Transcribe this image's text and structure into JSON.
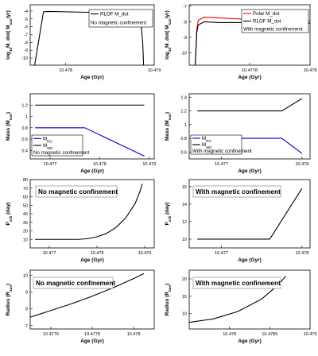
{
  "chart_data": [
    {
      "type": "line",
      "xlabel": "Age (Gyr)",
      "ylabel": "log10M_dot( Msun/yr)",
      "xlim": [
        10.4776,
        10.479
      ],
      "ylim": [
        -10.9,
        -3.2
      ],
      "xticks": [
        10.478,
        10.479
      ],
      "yticks": [
        -4,
        -5,
        -6,
        -7,
        -8,
        -9,
        -10
      ],
      "legend": {
        "position": "top-right",
        "entries": [
          "RLOF M_dot",
          "No magnetic confinement"
        ]
      },
      "series": [
        {
          "name": "RLOF M_dot",
          "color": "#000000",
          "x": [
            10.47765,
            10.47775,
            10.4778,
            10.478,
            10.4782,
            10.4784,
            10.4786,
            10.47875,
            10.4788,
            10.47885,
            10.47887,
            10.47888
          ],
          "y": [
            -10.9,
            -4.1,
            -4.05,
            -4.1,
            -4.15,
            -4.18,
            -4.22,
            -4.3,
            -4.6,
            -5.5,
            -8.0,
            -10.9
          ]
        }
      ]
    },
    {
      "type": "line",
      "xlabel": "Age (Gyr)",
      "ylabel": "log10M_dot( Msun/yr)",
      "xlim": [
        10.4776,
        10.478
      ],
      "ylim": [
        -10.8,
        -6.9
      ],
      "xticks": [
        10.4778,
        10.478
      ],
      "yticks": [
        -7,
        -8,
        -9,
        -10
      ],
      "legend": {
        "position": "top-right",
        "entries": [
          "Polar M_dot",
          "RLOF M_dot",
          "With magnetic confinement"
        ]
      },
      "series": [
        {
          "name": "Polar M_dot",
          "color": "#ff0000",
          "x": [
            10.47762,
            10.477625,
            10.47763,
            10.47765,
            10.4777,
            10.4778,
            10.4779,
            10.478
          ],
          "y": [
            -10.8,
            -8.5,
            -7.9,
            -7.7,
            -7.75,
            -7.85,
            -7.95,
            -7.95
          ]
        },
        {
          "name": "RLOF M_dot",
          "color": "#000000",
          "x": [
            10.47762,
            10.477625,
            10.47763,
            10.47765,
            10.4777,
            10.4778,
            10.4779,
            10.478
          ],
          "y": [
            -10.8,
            -8.7,
            -8.2,
            -8.0,
            -8.05,
            -8.05,
            -8.08,
            -8.1
          ]
        }
      ]
    },
    {
      "type": "line",
      "xlabel": "Age (Gyr)",
      "ylabel": "Mass (Msun)",
      "xlim": [
        10.4766,
        10.4791
      ],
      "ylim": [
        0.25,
        1.4
      ],
      "xticks": [
        10.477,
        10.478,
        10.479
      ],
      "yticks": [
        1.2,
        1.0,
        0.8,
        0.6,
        0.4
      ],
      "legend": {
        "position": "bottom-left",
        "entries": [
          "MRG",
          "MWD",
          "No magnetic confinement"
        ]
      },
      "series": [
        {
          "name": "MRG",
          "color": "#0000cc",
          "x": [
            10.4767,
            10.4777,
            10.4789
          ],
          "y": [
            0.8,
            0.8,
            0.3
          ]
        },
        {
          "name": "MWD",
          "color": "#000000",
          "x": [
            10.4767,
            10.4789
          ],
          "y": [
            1.2,
            1.2
          ]
        }
      ]
    },
    {
      "type": "line",
      "xlabel": "Age (Gyr)",
      "ylabel": "Mass (Msun)",
      "xlim": [
        10.4766,
        10.4781
      ],
      "ylim": [
        0.5,
        1.45
      ],
      "xticks": [
        10.477,
        10.478
      ],
      "yticks": [
        1.4,
        1.2,
        1.0,
        0.8,
        0.6
      ],
      "legend": {
        "position": "bottom-left",
        "entries": [
          "MRG",
          "MWD",
          "With magnetic confinement"
        ]
      },
      "series": [
        {
          "name": "MRG",
          "color": "#0000cc",
          "x": [
            10.4767,
            10.47775,
            10.478
          ],
          "y": [
            0.8,
            0.8,
            0.58
          ]
        },
        {
          "name": "MWD",
          "color": "#000000",
          "x": [
            10.4767,
            10.47775,
            10.478
          ],
          "y": [
            1.2,
            1.2,
            1.38
          ]
        }
      ]
    },
    {
      "type": "line",
      "xlabel": "Age (Gyr)",
      "ylabel": "Porb (day)",
      "xlim": [
        10.4766,
        10.4792
      ],
      "ylim": [
        0,
        80
      ],
      "xticks": [
        10.477,
        10.478,
        10.479
      ],
      "yticks": [
        80,
        70,
        60,
        50,
        40,
        30,
        20,
        10
      ],
      "annotation": "No magnetic confinement",
      "series": [
        {
          "name": "",
          "color": "#000000",
          "x": [
            10.4767,
            10.4776,
            10.4778,
            10.478,
            10.4782,
            10.4784,
            10.4786,
            10.4788,
            10.4789,
            10.47895
          ],
          "y": [
            10,
            10,
            10.8,
            13,
            17,
            24,
            35,
            52,
            66,
            75
          ]
        }
      ]
    },
    {
      "type": "line",
      "xlabel": "Age (Gyr)",
      "ylabel": "Porb (day)",
      "xlim": [
        10.4766,
        10.4781
      ],
      "ylim": [
        9,
        16.8
      ],
      "xticks": [
        10.477,
        10.478
      ],
      "yticks": [
        16,
        14,
        12,
        10
      ],
      "annotation": "With magnetic confinement",
      "series": [
        {
          "name": "",
          "color": "#000000",
          "x": [
            10.4767,
            10.4776,
            10.478
          ],
          "y": [
            10,
            10,
            15.8
          ]
        }
      ]
    },
    {
      "type": "line",
      "xlabel": "Age (Gyr)",
      "ylabel": "Radius (Rsun)",
      "xlim": [
        10.4775,
        10.4781
      ],
      "ylim": [
        6.8,
        10.3
      ],
      "xticks": [
        10.4776,
        10.4778,
        10.478
      ],
      "yticks": [
        10,
        9,
        8,
        7
      ],
      "annotation": "No magnetic confinement",
      "series": [
        {
          "name": "",
          "color": "#000000",
          "x": [
            10.4775,
            10.4776,
            10.4777,
            10.4778,
            10.4779,
            10.478,
            10.47805
          ],
          "y": [
            7.5,
            7.9,
            8.3,
            8.75,
            9.25,
            9.8,
            10.1
          ]
        }
      ]
    },
    {
      "type": "line",
      "xlabel": "Age (Gyr)",
      "ylabel": "Radius (Rsun)",
      "xlim": [
        10.4775,
        10.479
      ],
      "ylim": [
        5.6,
        22.5
      ],
      "xticks": [
        10.478,
        10.4785,
        10.479
      ],
      "yticks": [
        20,
        15,
        10
      ],
      "annotation": "With magnetic confinement",
      "series": [
        {
          "name": "",
          "color": "#000000",
          "x": [
            10.4775,
            10.4778,
            10.4781,
            10.4784,
            10.4786,
            10.4787
          ],
          "y": [
            7.5,
            8.5,
            10.6,
            14.2,
            18.2,
            20.8
          ]
        }
      ]
    }
  ]
}
